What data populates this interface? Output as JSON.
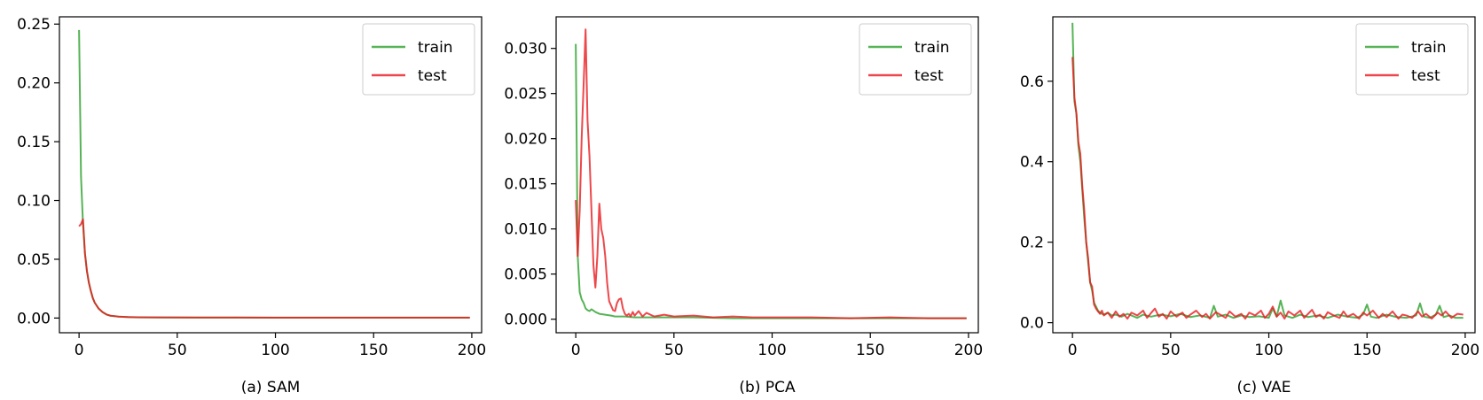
{
  "chart_data": [
    {
      "type": "line",
      "caption": "(a) SAM",
      "xlim": [
        -10,
        205
      ],
      "ylim": [
        -0.0125,
        0.2562
      ],
      "xticks": [
        0,
        50,
        100,
        150,
        200
      ],
      "xtick_labels": [
        "0",
        "50",
        "100",
        "150",
        "200"
      ],
      "yticks": [
        0,
        0.05,
        0.1,
        0.15,
        0.2,
        0.25
      ],
      "ytick_labels": [
        "0.00",
        "0.05",
        "0.10",
        "0.15",
        "0.20",
        "0.25"
      ],
      "legend_position": "top-right",
      "series": [
        {
          "name": "train",
          "color": "#2ca02c",
          "x": [
            0,
            1,
            2,
            3,
            4,
            5,
            6,
            7,
            8,
            10,
            12,
            14,
            16,
            20,
            25,
            30,
            40,
            60,
            80,
            100,
            120,
            140,
            160,
            180,
            199
          ],
          "y": [
            0.245,
            0.12,
            0.08,
            0.055,
            0.04,
            0.03,
            0.023,
            0.017,
            0.013,
            0.008,
            0.005,
            0.003,
            0.002,
            0.0012,
            0.0008,
            0.0006,
            0.0005,
            0.0004,
            0.0004,
            0.0003,
            0.0003,
            0.0003,
            0.0003,
            0.0003,
            0.0003
          ]
        },
        {
          "name": "test",
          "color": "#e8191e",
          "x": [
            0,
            1,
            2,
            3,
            4,
            5,
            6,
            7,
            8,
            10,
            12,
            14,
            16,
            20,
            25,
            30,
            40,
            60,
            80,
            100,
            120,
            140,
            160,
            180,
            199
          ],
          "y": [
            0.078,
            0.08,
            0.084,
            0.055,
            0.04,
            0.03,
            0.023,
            0.017,
            0.013,
            0.008,
            0.005,
            0.003,
            0.002,
            0.0012,
            0.0009,
            0.0007,
            0.0006,
            0.0005,
            0.0005,
            0.0004,
            0.0004,
            0.0004,
            0.0004,
            0.0004,
            0.0004
          ]
        }
      ]
    },
    {
      "type": "line",
      "caption": "(b) PCA",
      "xlim": [
        -10,
        205
      ],
      "ylim": [
        -0.0015,
        0.0335
      ],
      "xticks": [
        0,
        50,
        100,
        150,
        200
      ],
      "xtick_labels": [
        "0",
        "50",
        "100",
        "150",
        "200"
      ],
      "yticks": [
        0,
        0.005,
        0.01,
        0.015,
        0.02,
        0.025,
        0.03
      ],
      "ytick_labels": [
        "0.000",
        "0.005",
        "0.010",
        "0.015",
        "0.020",
        "0.025",
        "0.030"
      ],
      "legend_position": "top-right",
      "series": [
        {
          "name": "train",
          "color": "#2ca02c",
          "x": [
            0,
            1,
            2,
            3,
            4,
            5,
            6,
            7,
            8,
            10,
            12,
            15,
            18,
            20,
            25,
            30,
            40,
            60,
            80,
            100,
            120,
            140,
            160,
            180,
            199
          ],
          "y": [
            0.0305,
            0.007,
            0.003,
            0.0022,
            0.0018,
            0.0012,
            0.001,
            0.0009,
            0.0011,
            0.0008,
            0.0006,
            0.0005,
            0.0004,
            0.0003,
            0.0003,
            0.0002,
            0.0002,
            0.0002,
            0.0001,
            0.0001,
            0.0001,
            0.0001,
            0.0001,
            0.0001,
            0.0001
          ]
        },
        {
          "name": "test",
          "color": "#e8191e",
          "x": [
            0,
            1,
            2,
            3,
            4,
            5,
            6,
            7,
            8,
            9,
            10,
            11,
            12,
            13,
            14,
            15,
            16,
            17,
            18,
            19,
            20,
            21,
            22,
            23,
            24,
            25,
            26,
            27,
            28,
            29,
            30,
            32,
            34,
            36,
            40,
            45,
            50,
            60,
            70,
            80,
            90,
            100,
            120,
            140,
            160,
            180,
            199
          ],
          "y": [
            0.0132,
            0.007,
            0.012,
            0.02,
            0.026,
            0.0321,
            0.022,
            0.018,
            0.012,
            0.006,
            0.0035,
            0.007,
            0.0128,
            0.01,
            0.009,
            0.007,
            0.004,
            0.002,
            0.0015,
            0.001,
            0.0009,
            0.0018,
            0.0022,
            0.0023,
            0.0012,
            0.0006,
            0.0004,
            0.0006,
            0.0003,
            0.0008,
            0.0004,
            0.0009,
            0.0003,
            0.0007,
            0.0003,
            0.0005,
            0.0003,
            0.0004,
            0.0002,
            0.0003,
            0.0002,
            0.0002,
            0.0002,
            0.0001,
            0.0002,
            0.0001,
            0.0001
          ]
        }
      ]
    },
    {
      "type": "line",
      "caption": "(c) VAE",
      "xlim": [
        -10,
        205
      ],
      "ylim": [
        -0.025,
        0.76
      ],
      "xticks": [
        0,
        50,
        100,
        150,
        200
      ],
      "xtick_labels": [
        "0",
        "50",
        "100",
        "150",
        "200"
      ],
      "yticks": [
        0,
        0.2,
        0.4,
        0.6
      ],
      "ytick_labels": [
        "0.0",
        "0.2",
        "0.4",
        "0.6"
      ],
      "legend_position": "top-right",
      "series": [
        {
          "name": "train",
          "color": "#2ca02c",
          "x": [
            0,
            1,
            2,
            3,
            4,
            5,
            6,
            7,
            8,
            9,
            10,
            11,
            12,
            13,
            14,
            15,
            16,
            18,
            20,
            22,
            25,
            28,
            30,
            33,
            36,
            40,
            45,
            50,
            55,
            60,
            65,
            70,
            72,
            74,
            78,
            82,
            86,
            90,
            95,
            100,
            102,
            104,
            106,
            108,
            112,
            116,
            120,
            125,
            130,
            135,
            140,
            145,
            148,
            150,
            152,
            155,
            160,
            165,
            170,
            175,
            177,
            179,
            182,
            185,
            187,
            189,
            192,
            195,
            199
          ],
          "y": [
            0.745,
            0.55,
            0.52,
            0.44,
            0.4,
            0.33,
            0.26,
            0.2,
            0.15,
            0.1,
            0.08,
            0.05,
            0.04,
            0.03,
            0.025,
            0.022,
            0.02,
            0.025,
            0.018,
            0.02,
            0.015,
            0.022,
            0.018,
            0.012,
            0.02,
            0.015,
            0.02,
            0.016,
            0.022,
            0.014,
            0.018,
            0.012,
            0.042,
            0.015,
            0.02,
            0.012,
            0.018,
            0.014,
            0.016,
            0.012,
            0.035,
            0.015,
            0.055,
            0.018,
            0.012,
            0.02,
            0.014,
            0.018,
            0.012,
            0.02,
            0.015,
            0.012,
            0.02,
            0.045,
            0.015,
            0.012,
            0.02,
            0.014,
            0.012,
            0.018,
            0.048,
            0.015,
            0.012,
            0.02,
            0.042,
            0.014,
            0.018,
            0.012,
            0.012
          ]
        },
        {
          "name": "test",
          "color": "#e8191e",
          "x": [
            0,
            1,
            2,
            3,
            4,
            5,
            6,
            7,
            8,
            9,
            10,
            11,
            12,
            13,
            14,
            15,
            16,
            18,
            20,
            22,
            24,
            26,
            28,
            30,
            33,
            36,
            38,
            40,
            42,
            44,
            46,
            48,
            50,
            53,
            56,
            58,
            60,
            63,
            66,
            68,
            70,
            73,
            76,
            78,
            80,
            83,
            86,
            88,
            90,
            93,
            96,
            98,
            100,
            102,
            104,
            106,
            108,
            110,
            113,
            116,
            118,
            120,
            122,
            124,
            126,
            128,
            130,
            133,
            136,
            138,
            140,
            143,
            146,
            148,
            150,
            153,
            156,
            158,
            160,
            163,
            166,
            168,
            170,
            173,
            176,
            178,
            180,
            183,
            186,
            188,
            190,
            193,
            196,
            199
          ],
          "y": [
            0.66,
            0.56,
            0.52,
            0.45,
            0.42,
            0.34,
            0.28,
            0.2,
            0.16,
            0.1,
            0.09,
            0.045,
            0.035,
            0.028,
            0.022,
            0.03,
            0.018,
            0.025,
            0.012,
            0.028,
            0.015,
            0.022,
            0.01,
            0.025,
            0.018,
            0.03,
            0.012,
            0.024,
            0.035,
            0.015,
            0.022,
            0.01,
            0.028,
            0.015,
            0.025,
            0.012,
            0.02,
            0.03,
            0.014,
            0.022,
            0.01,
            0.026,
            0.018,
            0.012,
            0.028,
            0.015,
            0.022,
            0.01,
            0.025,
            0.018,
            0.03,
            0.012,
            0.022,
            0.04,
            0.015,
            0.025,
            0.01,
            0.028,
            0.018,
            0.03,
            0.012,
            0.022,
            0.032,
            0.014,
            0.02,
            0.01,
            0.026,
            0.018,
            0.012,
            0.028,
            0.015,
            0.022,
            0.01,
            0.025,
            0.018,
            0.03,
            0.012,
            0.022,
            0.014,
            0.028,
            0.01,
            0.02,
            0.018,
            0.012,
            0.028,
            0.015,
            0.022,
            0.01,
            0.025,
            0.018,
            0.028,
            0.012,
            0.022,
            0.02
          ]
        }
      ]
    }
  ]
}
